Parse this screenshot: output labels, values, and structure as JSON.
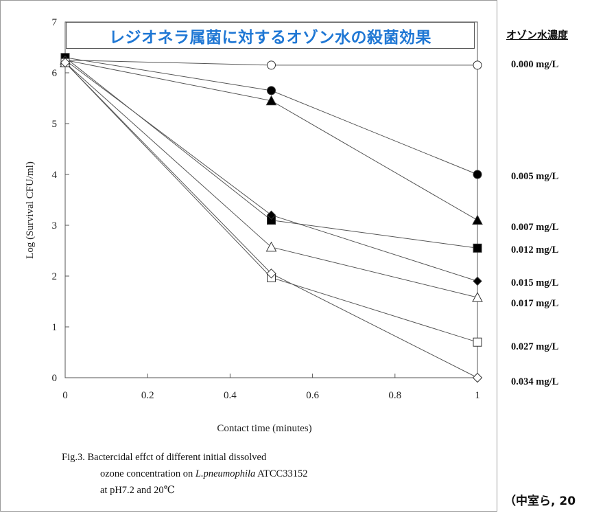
{
  "chart_data": {
    "type": "line",
    "title": "レジオネラ属菌に対するオゾン水の殺菌効果",
    "xlabel": "Contact time (minutes)",
    "ylabel": "Log (Survival CFU/ml)",
    "xlim": [
      0,
      1
    ],
    "ylim": [
      0,
      7
    ],
    "x_ticks": [
      "0",
      "0.2",
      "0.4",
      "0.6",
      "0.8",
      "1"
    ],
    "y_ticks": [
      "0",
      "1",
      "2",
      "3",
      "4",
      "5",
      "6",
      "7"
    ],
    "grid": false,
    "legend_title": "オゾン水濃度",
    "legend_position": "right",
    "x": [
      0,
      0.5,
      1
    ],
    "series": [
      {
        "name": "0.000 mg/L",
        "marker": "circle-open",
        "values": [
          6.25,
          6.15,
          6.15
        ]
      },
      {
        "name": "0.005 mg/L",
        "marker": "circle-filled",
        "values": [
          6.3,
          5.65,
          4.0
        ]
      },
      {
        "name": "0.007 mg/L",
        "marker": "triangle-filled",
        "values": [
          6.25,
          5.45,
          3.1
        ]
      },
      {
        "name": "0.012 mg/L",
        "marker": "square-filled",
        "values": [
          6.3,
          3.1,
          2.55
        ]
      },
      {
        "name": "0.015 mg/L",
        "marker": "diamond-filled",
        "values": [
          6.25,
          3.2,
          1.9
        ]
      },
      {
        "name": "0.017 mg/L",
        "marker": "triangle-open",
        "values": [
          6.2,
          2.57,
          1.58
        ]
      },
      {
        "name": "0.027 mg/L",
        "marker": "square-open",
        "values": [
          6.2,
          1.97,
          0.7
        ]
      },
      {
        "name": "0.034 mg/L",
        "marker": "diamond-open",
        "values": [
          6.2,
          2.05,
          0.0
        ]
      }
    ],
    "legend_label_y_values": [
      6.15,
      3.95,
      2.95,
      2.5,
      1.85,
      1.45,
      0.6,
      -0.1
    ]
  },
  "caption": {
    "line1": "Fig.3. Bactercidal effct of different initial dissolved",
    "line2_pre": "ozone concentration on ",
    "line2_species": "L.pneumophila",
    "line2_post": " ATCC33152",
    "line3": "at pH7.2 and 20℃"
  },
  "source_note": "（中室ら, 20"
}
